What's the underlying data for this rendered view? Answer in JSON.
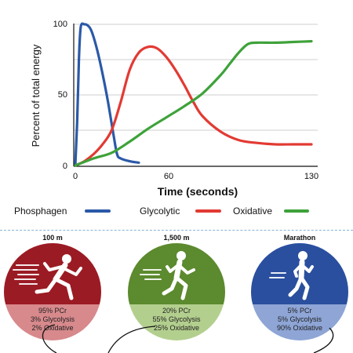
{
  "chart_data": {
    "type": "line",
    "title": "",
    "xlabel": "Time (seconds)",
    "ylabel": "Percent of total energy",
    "xlim": [
      0,
      130
    ],
    "ylim": [
      0,
      100
    ],
    "x_ticks": [
      "0",
      "60",
      "130"
    ],
    "y_ticks": [
      "0",
      "50",
      "100"
    ],
    "grid": true,
    "legend": "bottom",
    "series": [
      {
        "name": "Phosphagen",
        "color": "#2b59a8",
        "x": [
          0,
          1,
          2,
          3,
          5,
          7,
          9,
          12,
          15,
          18,
          21,
          23,
          25,
          30,
          35
        ],
        "y": [
          0,
          30,
          75,
          98,
          100,
          99,
          95,
          82,
          65,
          45,
          22,
          8,
          5,
          3,
          2
        ]
      },
      {
        "name": "Glycolytic",
        "color": "#e23a33",
        "x": [
          0,
          5,
          10,
          15,
          20,
          25,
          30,
          35,
          40,
          45,
          50,
          55,
          60,
          65,
          70,
          80,
          90,
          100,
          110,
          120,
          130
        ],
        "y": [
          0,
          3,
          8,
          15,
          25,
          45,
          68,
          80,
          84,
          83,
          77,
          68,
          57,
          45,
          35,
          24,
          18,
          16,
          15,
          15,
          15
        ]
      },
      {
        "name": "Oxidative",
        "color": "#3ea23a",
        "x": [
          0,
          10,
          20,
          30,
          40,
          50,
          60,
          70,
          80,
          85,
          90,
          95,
          100,
          110,
          120,
          130
        ],
        "y": [
          0,
          5,
          9,
          17,
          26,
          34,
          42,
          51,
          64,
          72,
          80,
          86,
          87,
          87,
          87.5,
          88
        ]
      }
    ]
  },
  "events": [
    {
      "label": "100 m",
      "top_color": "#9b1b24",
      "bottom_color": "#d7898c",
      "lines": [
        "95% PCr",
        "3% Glycolysis",
        "2% Oxidative"
      ]
    },
    {
      "label": "1,500 m",
      "top_color": "#5c8a2e",
      "bottom_color": "#b3cf8e",
      "lines": [
        "20% PCr",
        "55% Glycolysis",
        "25% Oxidative"
      ]
    },
    {
      "label": "Marathon",
      "top_color": "#2a4f9e",
      "bottom_color": "#8ea5d6",
      "lines": [
        "5% PCr",
        "5% Glycolysis",
        "90% Oxidative"
      ]
    }
  ]
}
